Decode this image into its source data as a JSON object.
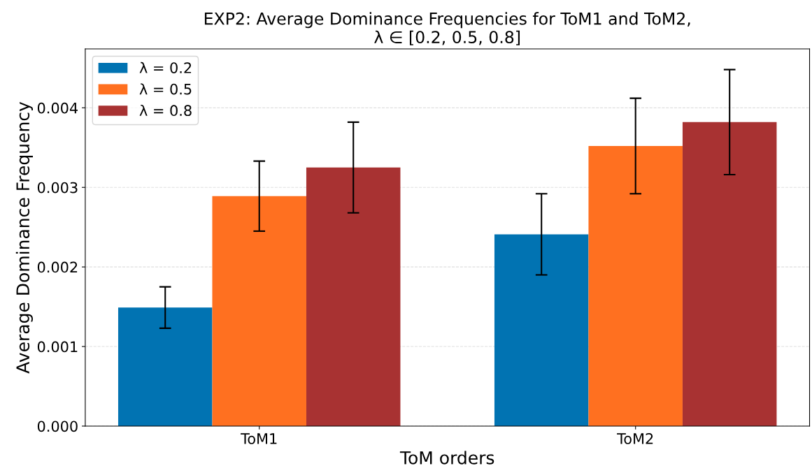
{
  "chart_data": {
    "type": "bar",
    "title": "EXP2: Average Dominance Frequencies for ToM1 and ToM2,\nλ ∈ [0.2, 0.5, 0.8]",
    "xlabel": "ToM orders",
    "ylabel": "Average Dominance Frequency",
    "categories": [
      "ToM1",
      "ToM2"
    ],
    "series": [
      {
        "name": "λ = 0.2",
        "color": "#0173b2",
        "values": [
          0.00149,
          0.00241
        ],
        "errors": [
          0.00026,
          0.00051
        ]
      },
      {
        "name": "λ = 0.5",
        "color": "#ff7020",
        "values": [
          0.00289,
          0.00352
        ],
        "errors": [
          0.00044,
          0.0006
        ]
      },
      {
        "name": "λ = 0.8",
        "color": "#a83232",
        "values": [
          0.00325,
          0.00382
        ],
        "errors": [
          0.00057,
          0.00066
        ]
      }
    ],
    "ylim": [
      0,
      0.00474
    ],
    "yticks": [
      {
        "value": 0,
        "label": "0.000"
      },
      {
        "value": 0.001,
        "label": "0.001"
      },
      {
        "value": 0.002,
        "label": "0.002"
      },
      {
        "value": 0.003,
        "label": "0.003"
      },
      {
        "value": 0.004,
        "label": "0.004"
      }
    ],
    "grid": "y",
    "legend": "top left"
  }
}
